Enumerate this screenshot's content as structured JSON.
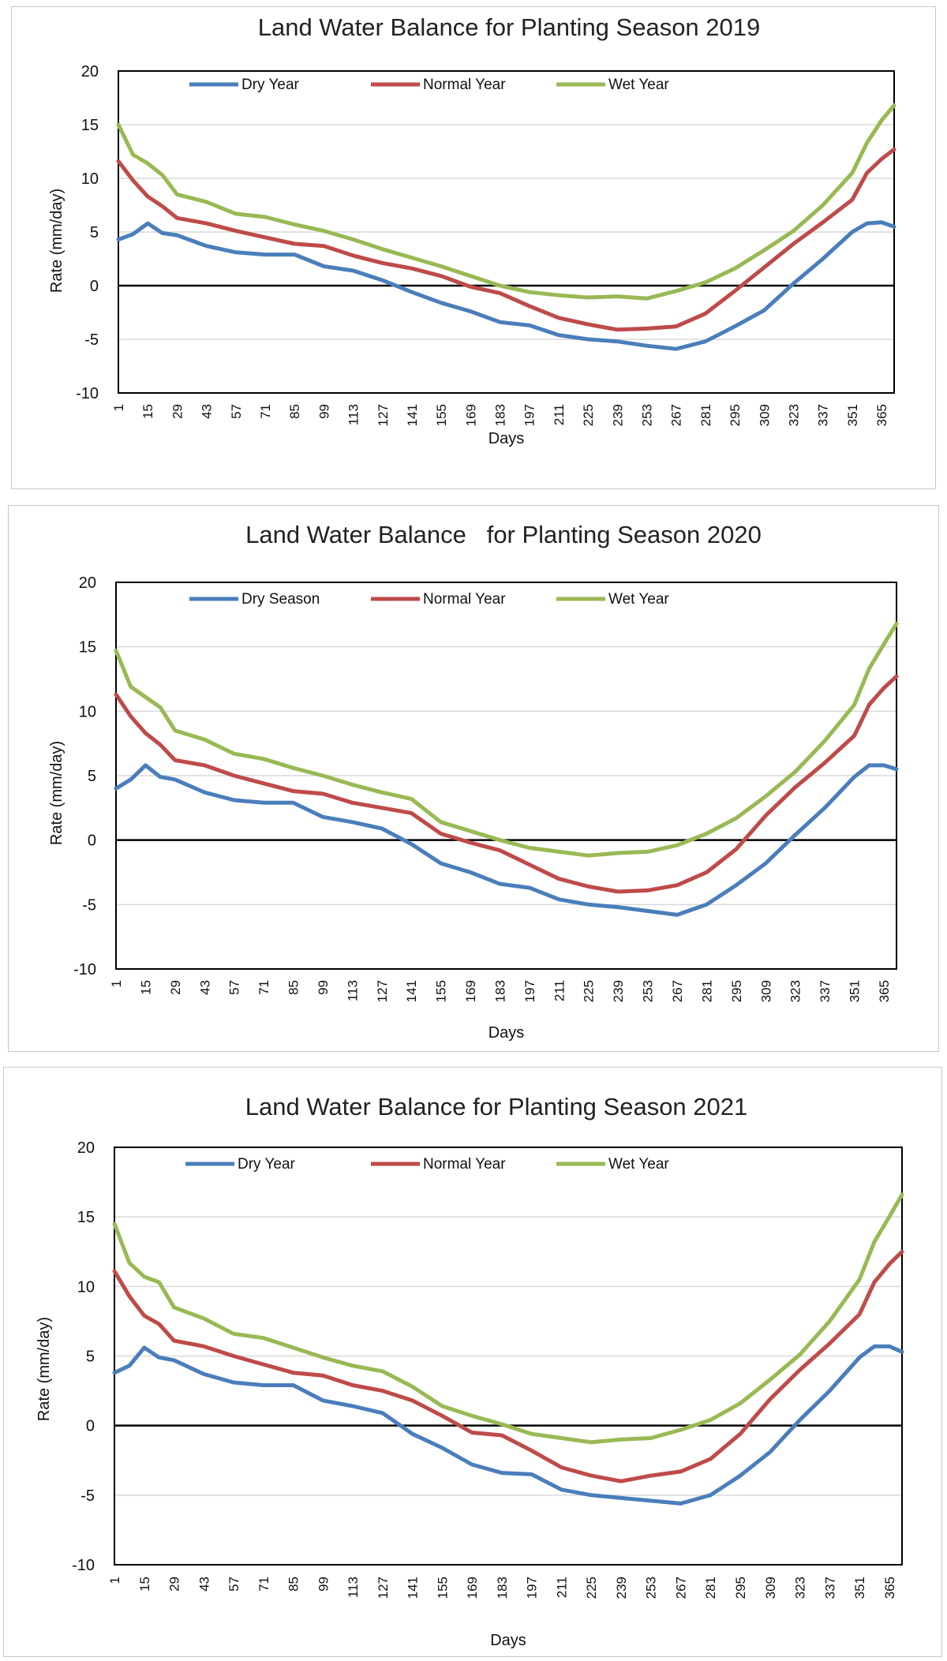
{
  "chart_data": [
    {
      "type": "line",
      "title": "Land Water Balance for Planting Season 2019",
      "xlabel": "Days",
      "ylabel": "Rate (mm/day)",
      "ylim": [
        -10,
        20
      ],
      "yticks": [
        -10,
        -5,
        0,
        5,
        10,
        15,
        20
      ],
      "xlim": [
        1,
        371
      ],
      "xticks": [
        1,
        15,
        29,
        43,
        57,
        71,
        85,
        99,
        113,
        127,
        141,
        155,
        169,
        183,
        197,
        211,
        225,
        239,
        253,
        267,
        281,
        295,
        309,
        323,
        337,
        351,
        365
      ],
      "grid": "horizontal",
      "legend": "top-left",
      "x": [
        1,
        8,
        15,
        22,
        29,
        43,
        57,
        71,
        85,
        99,
        113,
        127,
        141,
        155,
        169,
        183,
        197,
        211,
        225,
        239,
        253,
        267,
        281,
        295,
        309,
        323,
        337,
        351,
        358,
        365,
        371
      ],
      "series": [
        {
          "name": "Dry Year",
          "color": "#4a7ebb",
          "values": [
            4.3,
            4.8,
            5.8,
            4.9,
            4.7,
            3.7,
            3.1,
            2.9,
            2.9,
            1.8,
            1.4,
            0.5,
            -0.6,
            -1.6,
            -2.4,
            -3.4,
            -3.7,
            -4.6,
            -5.0,
            -5.2,
            -5.6,
            -5.9,
            -5.2,
            -3.8,
            -2.3,
            0.2,
            2.5,
            5.0,
            5.8,
            5.9,
            5.5
          ]
        },
        {
          "name": "Normal Year",
          "color": "#be4b48",
          "values": [
            11.6,
            9.8,
            8.3,
            7.4,
            6.3,
            5.8,
            5.1,
            4.5,
            3.9,
            3.7,
            2.8,
            2.1,
            1.6,
            0.9,
            -0.1,
            -0.7,
            -1.9,
            -3.0,
            -3.6,
            -4.1,
            -4.0,
            -3.8,
            -2.6,
            -0.5,
            1.7,
            3.9,
            5.9,
            8.0,
            10.5,
            11.8,
            12.7
          ]
        },
        {
          "name": "Wet Year",
          "color": "#98b954",
          "values": [
            15.0,
            12.2,
            11.4,
            10.3,
            8.5,
            7.8,
            6.7,
            6.4,
            5.7,
            5.1,
            4.3,
            3.4,
            2.6,
            1.8,
            0.9,
            0.0,
            -0.6,
            -0.9,
            -1.1,
            -1.0,
            -1.2,
            -0.5,
            0.3,
            1.6,
            3.3,
            5.1,
            7.5,
            10.5,
            13.3,
            15.4,
            16.8
          ]
        }
      ]
    },
    {
      "type": "line",
      "title": "Land Water Balance   for Planting Season 2020",
      "xlabel": "Days",
      "ylabel": "Rate (mm/day)",
      "ylim": [
        -10,
        20
      ],
      "yticks": [
        -10,
        -5,
        0,
        5,
        10,
        15,
        20
      ],
      "xlim": [
        1,
        371
      ],
      "xticks": [
        1,
        15,
        29,
        43,
        57,
        71,
        85,
        99,
        113,
        127,
        141,
        155,
        169,
        183,
        197,
        211,
        225,
        239,
        253,
        267,
        281,
        295,
        309,
        323,
        337,
        351,
        365
      ],
      "grid": "horizontal",
      "legend": "top-left",
      "x": [
        1,
        8,
        15,
        22,
        29,
        43,
        57,
        71,
        85,
        99,
        113,
        127,
        141,
        155,
        169,
        183,
        197,
        211,
        225,
        239,
        253,
        267,
        281,
        295,
        309,
        323,
        337,
        351,
        358,
        365,
        371
      ],
      "series": [
        {
          "name": "Dry Season",
          "color": "#4a7ebb",
          "values": [
            4.0,
            4.7,
            5.8,
            4.9,
            4.7,
            3.7,
            3.1,
            2.9,
            2.9,
            1.8,
            1.4,
            0.9,
            -0.3,
            -1.8,
            -2.5,
            -3.4,
            -3.7,
            -4.6,
            -5.0,
            -5.2,
            -5.5,
            -5.8,
            -5.0,
            -3.5,
            -1.8,
            0.4,
            2.5,
            4.9,
            5.8,
            5.8,
            5.5
          ]
        },
        {
          "name": "Normal Year",
          "color": "#be4b48",
          "values": [
            11.3,
            9.6,
            8.3,
            7.4,
            6.2,
            5.8,
            5.0,
            4.4,
            3.8,
            3.6,
            2.9,
            2.5,
            2.1,
            0.5,
            -0.2,
            -0.8,
            -1.9,
            -3.0,
            -3.6,
            -4.0,
            -3.9,
            -3.5,
            -2.5,
            -0.7,
            1.9,
            4.1,
            6.0,
            8.1,
            10.5,
            11.8,
            12.7
          ]
        },
        {
          "name": "Wet Year",
          "color": "#98b954",
          "values": [
            14.7,
            11.9,
            11.1,
            10.3,
            8.5,
            7.8,
            6.7,
            6.3,
            5.6,
            5.0,
            4.3,
            3.7,
            3.2,
            1.4,
            0.7,
            0.0,
            -0.6,
            -0.9,
            -1.2,
            -1.0,
            -0.9,
            -0.4,
            0.5,
            1.7,
            3.4,
            5.3,
            7.7,
            10.5,
            13.3,
            15.2,
            16.8
          ]
        }
      ]
    },
    {
      "type": "line",
      "title": "Land Water Balance for Planting Season 2021",
      "xlabel": "Days",
      "ylabel": "Rate (mm/day)",
      "ylim": [
        -10,
        20
      ],
      "yticks": [
        -10,
        -5,
        0,
        5,
        10,
        15,
        20
      ],
      "xlim": [
        1,
        371
      ],
      "xticks": [
        1,
        15,
        29,
        43,
        57,
        71,
        85,
        99,
        113,
        127,
        141,
        155,
        169,
        183,
        197,
        211,
        225,
        239,
        253,
        267,
        281,
        295,
        309,
        323,
        337,
        351,
        365
      ],
      "grid": "horizontal",
      "legend": "top-left",
      "x": [
        1,
        8,
        15,
        22,
        29,
        43,
        57,
        71,
        85,
        99,
        113,
        127,
        141,
        155,
        169,
        183,
        197,
        211,
        225,
        239,
        253,
        267,
        281,
        295,
        309,
        323,
        337,
        351,
        358,
        365,
        371
      ],
      "series": [
        {
          "name": "Dry Year",
          "color": "#4a7ebb",
          "values": [
            3.8,
            4.3,
            5.6,
            4.9,
            4.7,
            3.7,
            3.1,
            2.9,
            2.9,
            1.8,
            1.4,
            0.9,
            -0.6,
            -1.6,
            -2.8,
            -3.4,
            -3.5,
            -4.6,
            -5.0,
            -5.2,
            -5.4,
            -5.6,
            -5.0,
            -3.6,
            -1.9,
            0.4,
            2.5,
            4.9,
            5.7,
            5.7,
            5.3
          ]
        },
        {
          "name": "Normal Year",
          "color": "#be4b48",
          "values": [
            11.1,
            9.3,
            7.9,
            7.3,
            6.1,
            5.7,
            5.0,
            4.4,
            3.8,
            3.6,
            2.9,
            2.5,
            1.8,
            0.7,
            -0.5,
            -0.7,
            -1.8,
            -3.0,
            -3.6,
            -4.0,
            -3.6,
            -3.3,
            -2.4,
            -0.6,
            1.9,
            4.0,
            5.9,
            8.0,
            10.3,
            11.6,
            12.5
          ]
        },
        {
          "name": "Wet Year",
          "color": "#98b954",
          "values": [
            14.5,
            11.7,
            10.7,
            10.3,
            8.5,
            7.7,
            6.6,
            6.3,
            5.6,
            4.9,
            4.3,
            3.9,
            2.8,
            1.4,
            0.7,
            0.1,
            -0.6,
            -0.9,
            -1.2,
            -1.0,
            -0.9,
            -0.3,
            0.4,
            1.6,
            3.3,
            5.1,
            7.5,
            10.5,
            13.2,
            15.0,
            16.6
          ]
        }
      ]
    }
  ]
}
